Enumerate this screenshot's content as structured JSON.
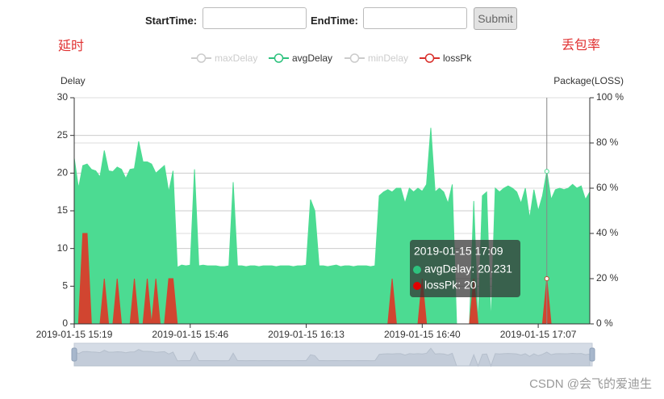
{
  "form": {
    "start_label": "StartTime:",
    "end_label": "EndTime:",
    "submit": "Submit"
  },
  "annotations": {
    "left": "延时",
    "right": "丢包率"
  },
  "watermark": "CSDN @会飞的爱迪生",
  "chart_data": {
    "type": "area",
    "y_axis_label": "Delay",
    "y2_axis_label": "Package(LOSS)",
    "categories": [
      "2019-01-15 15:19",
      null,
      null,
      null,
      null,
      null,
      null,
      null,
      null,
      null,
      null,
      null,
      null,
      null,
      null,
      null,
      null,
      null,
      null,
      null,
      null,
      null,
      null,
      null,
      null,
      null,
      null,
      "2019-01-15 15:46",
      null,
      null,
      null,
      null,
      null,
      null,
      null,
      null,
      null,
      null,
      null,
      null,
      null,
      null,
      null,
      null,
      null,
      null,
      null,
      null,
      null,
      null,
      null,
      null,
      null,
      null,
      "2019-01-15 16:13",
      null,
      null,
      null,
      null,
      null,
      null,
      null,
      null,
      null,
      null,
      null,
      null,
      null,
      null,
      null,
      null,
      null,
      null,
      null,
      null,
      null,
      null,
      null,
      null,
      null,
      null,
      "2019-01-15 16:40",
      null,
      null,
      null,
      null,
      null,
      null,
      null,
      null,
      null,
      null,
      null,
      null,
      null,
      null,
      null,
      null,
      null,
      null,
      null,
      null,
      null,
      null,
      null,
      null,
      null,
      null,
      "2019-01-15 17:07",
      null,
      null,
      null,
      null,
      null,
      null,
      null,
      null,
      null,
      null,
      null,
      null
    ],
    "legend": [
      {
        "name": "maxDelay",
        "color": "#cccccc",
        "selected": false
      },
      {
        "name": "avgDelay",
        "color": "#2ec27e",
        "selected": true
      },
      {
        "name": "minDelay",
        "color": "#cccccc",
        "selected": false
      },
      {
        "name": "lossPk",
        "color": "#d9302c",
        "selected": true
      }
    ],
    "series": [
      {
        "name": "avgDelay",
        "color": "#4cdb92",
        "axis": "y",
        "values": [
          22,
          18,
          21,
          21.2,
          20.5,
          20.3,
          19.5,
          23,
          20.3,
          20.2,
          20.8,
          20.5,
          19.3,
          20.5,
          20.6,
          24.2,
          21.5,
          21.5,
          21.2,
          20,
          20.5,
          21,
          17.5,
          20.3,
          7.5,
          7.8,
          7.7,
          7.8,
          20.5,
          7.7,
          7.8,
          7.7,
          7.7,
          7.7,
          7.6,
          7.6,
          7.7,
          18.8,
          7.7,
          7.7,
          7.6,
          7.7,
          7.7,
          7.6,
          7.7,
          7.7,
          7.7,
          7.6,
          7.7,
          7.7,
          7.7,
          7.6,
          7.7,
          7.7,
          7.8,
          16.5,
          15,
          7.7,
          7.7,
          7.6,
          7.7,
          7.8,
          7.6,
          7.7,
          7.7,
          7.6,
          7.7,
          7.7,
          7.7,
          7.6,
          7.7,
          17,
          17.5,
          17.8,
          17.5,
          18,
          18,
          16,
          18,
          17.5,
          18,
          17.6,
          18.5,
          26,
          17.5,
          18,
          17.5,
          16,
          18.5,
          0,
          0,
          0,
          0,
          16.3,
          0,
          17,
          17.5,
          0,
          18,
          17.5,
          18,
          18.3,
          18,
          17.5,
          16,
          18,
          14,
          17.8,
          15,
          17,
          20.231,
          16.5,
          17.8,
          18,
          17.8,
          18,
          18.5,
          18,
          18.3,
          16.5,
          17.5
        ]
      },
      {
        "name": "lossPk",
        "color": "#d14530",
        "axis": "y2",
        "values": [
          0,
          0,
          40,
          40,
          0,
          0,
          0,
          20,
          0,
          0,
          20,
          0,
          0,
          0,
          20,
          0,
          0,
          20,
          0,
          20,
          0,
          0,
          20,
          20,
          0,
          0,
          0,
          0,
          0,
          0,
          0,
          0,
          0,
          0,
          0,
          0,
          0,
          0,
          0,
          0,
          0,
          0,
          0,
          0,
          0,
          0,
          0,
          0,
          0,
          0,
          0,
          0,
          0,
          0,
          0,
          0,
          0,
          0,
          0,
          0,
          0,
          0,
          0,
          0,
          0,
          0,
          0,
          0,
          0,
          0,
          0,
          0,
          0,
          0,
          20,
          0,
          0,
          0,
          0,
          0,
          0,
          20,
          0,
          0,
          0,
          0,
          0,
          0,
          0,
          0,
          0,
          0,
          0,
          20,
          0,
          0,
          0,
          0,
          0,
          0,
          0,
          0,
          0,
          0,
          0,
          0,
          0,
          0,
          0,
          0,
          20,
          0,
          0,
          0,
          0,
          0,
          0,
          0,
          0,
          0,
          0
        ]
      }
    ],
    "ylim": [
      0,
      30
    ],
    "yticks": [
      0,
      5,
      10,
      15,
      20,
      25,
      30
    ],
    "y2lim": [
      0,
      100
    ],
    "y2ticks": [
      {
        "value": 0,
        "label": "0 %"
      },
      {
        "value": 20,
        "label": "20 %"
      },
      {
        "value": 40,
        "label": "40 %"
      },
      {
        "value": 60,
        "label": "60 %"
      },
      {
        "value": 80,
        "label": "80 %"
      },
      {
        "value": 100,
        "label": "100 %"
      }
    ],
    "grid": true,
    "tooltip": {
      "index": 110,
      "title": "2019-01-15 17:09",
      "rows": [
        "avgDelay: 20.231",
        "lossPk: 20"
      ]
    }
  }
}
